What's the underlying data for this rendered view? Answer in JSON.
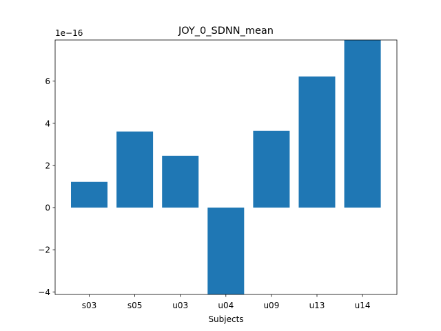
{
  "chart_data": {
    "type": "bar",
    "title": "JOY_0_SDNN_mean",
    "xlabel": "Subjects",
    "ylabel": "",
    "categories": [
      "s03",
      "s05",
      "u03",
      "u04",
      "u09",
      "u13",
      "u14"
    ],
    "values": [
      1.22,
      3.61,
      2.46,
      -4.12,
      3.64,
      6.22,
      7.95
    ],
    "scale_label": "1e−16",
    "ylim": [
      -4.12,
      7.95
    ],
    "y_ticks": [
      -4,
      -2,
      0,
      2,
      4,
      6
    ],
    "y_tick_labels": [
      "−4",
      "−2",
      "0",
      "2",
      "4",
      "6"
    ],
    "bar_color": "#1f77b4",
    "grid": false
  }
}
